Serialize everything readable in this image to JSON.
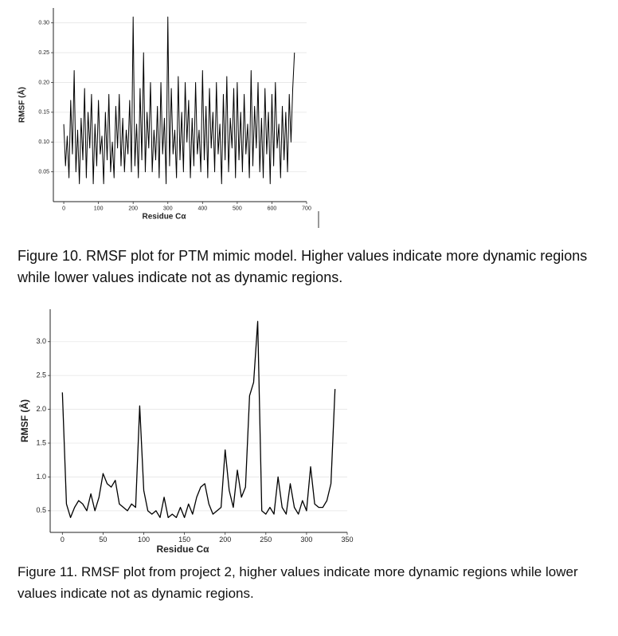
{
  "chart_data": [
    {
      "type": "line",
      "caption": "Figure 10. RMSF plot for PTM mimic model. Higher values indicate more dynamic regions while lower values indicate not as dynamic regions.",
      "x_label": "Residue Cα",
      "y_label": "RMSF (Å)",
      "grid": true,
      "color": "#000000",
      "xlim": [
        -30,
        700
      ],
      "ylim": [
        0,
        0.325
      ],
      "xticks": [
        0,
        100,
        200,
        300,
        400,
        500,
        600,
        700
      ],
      "yticks": [
        0.05,
        {
          "value": 0.1,
          "label": "0.10"
        },
        0.15,
        {
          "value": 0.2,
          "label": "0.20"
        },
        0.25,
        {
          "value": 0.3,
          "label": "0.30"
        }
      ],
      "x": [
        0,
        5,
        10,
        15,
        20,
        25,
        30,
        35,
        40,
        45,
        50,
        55,
        60,
        65,
        70,
        75,
        80,
        85,
        90,
        95,
        100,
        105,
        110,
        115,
        120,
        125,
        130,
        135,
        140,
        145,
        150,
        155,
        160,
        165,
        170,
        175,
        180,
        185,
        190,
        195,
        200,
        205,
        210,
        215,
        220,
        225,
        230,
        235,
        240,
        245,
        250,
        255,
        260,
        265,
        270,
        275,
        280,
        285,
        290,
        295,
        300,
        305,
        310,
        315,
        320,
        325,
        330,
        335,
        340,
        345,
        350,
        355,
        360,
        365,
        370,
        375,
        380,
        385,
        390,
        395,
        400,
        405,
        410,
        415,
        420,
        425,
        430,
        435,
        440,
        445,
        450,
        455,
        460,
        465,
        470,
        475,
        480,
        485,
        490,
        495,
        500,
        505,
        510,
        515,
        520,
        525,
        530,
        535,
        540,
        545,
        550,
        555,
        560,
        565,
        570,
        575,
        580,
        585,
        590,
        595,
        600,
        605,
        610,
        615,
        620,
        625,
        630,
        635,
        640,
        645,
        650,
        655,
        660,
        665
      ],
      "values": [
        0.13,
        0.06,
        0.11,
        0.04,
        0.17,
        0.08,
        0.22,
        0.05,
        0.12,
        0.03,
        0.14,
        0.07,
        0.19,
        0.04,
        0.15,
        0.09,
        0.18,
        0.03,
        0.13,
        0.06,
        0.17,
        0.08,
        0.11,
        0.03,
        0.15,
        0.07,
        0.18,
        0.05,
        0.1,
        0.04,
        0.16,
        0.09,
        0.18,
        0.06,
        0.14,
        0.05,
        0.12,
        0.08,
        0.17,
        0.05,
        0.31,
        0.06,
        0.13,
        0.04,
        0.19,
        0.07,
        0.25,
        0.05,
        0.15,
        0.09,
        0.2,
        0.05,
        0.12,
        0.07,
        0.16,
        0.04,
        0.2,
        0.08,
        0.14,
        0.03,
        0.31,
        0.06,
        0.19,
        0.08,
        0.12,
        0.04,
        0.21,
        0.07,
        0.15,
        0.05,
        0.2,
        0.1,
        0.17,
        0.04,
        0.14,
        0.06,
        0.2,
        0.08,
        0.12,
        0.05,
        0.22,
        0.07,
        0.16,
        0.04,
        0.19,
        0.09,
        0.15,
        0.05,
        0.2,
        0.08,
        0.13,
        0.03,
        0.18,
        0.07,
        0.21,
        0.05,
        0.14,
        0.09,
        0.19,
        0.04,
        0.2,
        0.07,
        0.15,
        0.05,
        0.18,
        0.08,
        0.13,
        0.04,
        0.22,
        0.06,
        0.16,
        0.09,
        0.2,
        0.05,
        0.14,
        0.04,
        0.19,
        0.08,
        0.15,
        0.03,
        0.18,
        0.06,
        0.2,
        0.09,
        0.13,
        0.04,
        0.16,
        0.07,
        0.15,
        0.05,
        0.18,
        0.1,
        0.19,
        0.25
      ]
    },
    {
      "type": "line",
      "caption": "Figure 11. RMSF plot from project 2, higher values indicate more dynamic regions while lower values indicate not as dynamic regions.",
      "x_label": "Residue Cα",
      "y_label": "RMSF (Å)",
      "grid": true,
      "color": "#000000",
      "xlim": [
        -15,
        350
      ],
      "ylim": [
        0.18,
        3.48
      ],
      "xticks": [
        0,
        50,
        100,
        150,
        200,
        250,
        300,
        350
      ],
      "yticks": [
        0.5,
        {
          "value": 1,
          "label": "1.0"
        },
        1.5,
        {
          "value": 2,
          "label": "2.0"
        },
        2.5,
        {
          "value": 3,
          "label": "3.0"
        }
      ],
      "x": [
        0,
        5,
        10,
        15,
        20,
        25,
        30,
        35,
        40,
        45,
        50,
        55,
        60,
        65,
        70,
        75,
        80,
        85,
        90,
        95,
        100,
        105,
        110,
        115,
        120,
        125,
        130,
        135,
        140,
        145,
        150,
        155,
        160,
        165,
        170,
        175,
        180,
        185,
        190,
        195,
        200,
        205,
        210,
        215,
        220,
        225,
        230,
        235,
        240,
        245,
        250,
        255,
        260,
        265,
        270,
        275,
        280,
        285,
        290,
        295,
        300,
        305,
        310,
        315,
        320,
        325,
        330,
        335
      ],
      "values": [
        2.25,
        0.6,
        0.4,
        0.55,
        0.65,
        0.6,
        0.5,
        0.75,
        0.5,
        0.7,
        1.05,
        0.9,
        0.85,
        0.95,
        0.6,
        0.55,
        0.5,
        0.6,
        0.55,
        2.05,
        0.8,
        0.5,
        0.45,
        0.5,
        0.4,
        0.7,
        0.4,
        0.45,
        0.4,
        0.55,
        0.4,
        0.6,
        0.45,
        0.7,
        0.85,
        0.9,
        0.6,
        0.45,
        0.5,
        0.55,
        1.4,
        0.8,
        0.55,
        1.1,
        0.7,
        0.85,
        2.2,
        2.4,
        3.3,
        0.5,
        0.45,
        0.55,
        0.45,
        1.0,
        0.55,
        0.45,
        0.9,
        0.55,
        0.45,
        0.65,
        0.5,
        1.15,
        0.6,
        0.55,
        0.55,
        0.65,
        0.9,
        2.3
      ]
    }
  ]
}
